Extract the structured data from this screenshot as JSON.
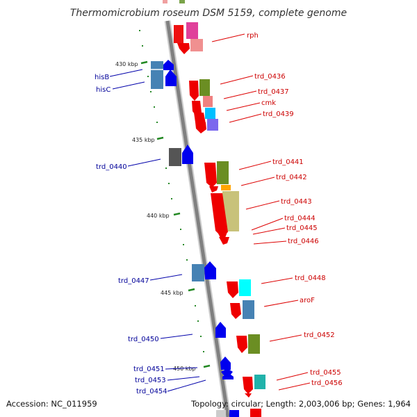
{
  "title": "Thermomicrobium roseum DSM 5159, complete genome",
  "accession": "Accession: NC_011959",
  "summary": "Topology: circular; Length: 2,003,006 bp; Genes: 1,964",
  "scale_ticks": [
    "430 kbp",
    "435 kbp",
    "440 kbp",
    "445 kbp",
    "450 kbp"
  ],
  "right_labels": [
    "rph",
    "trd_0436",
    "trd_0437",
    "cmk",
    "trd_0439",
    "trd_0441",
    "trd_0442",
    "trd_0443",
    "trd_0444",
    "trd_0445",
    "trd_0446",
    "trd_0448",
    "aroF",
    "trd_0452",
    "trd_0455",
    "trd_0456"
  ],
  "left_labels": [
    "hisB",
    "hisC",
    "trd_0440",
    "trd_0447",
    "trd_0450",
    "trd_0451",
    "trd_0453",
    "trd_0454"
  ],
  "colors": {
    "backbone": "#888888",
    "forward_strand_gene": "#0000ee",
    "reverse_strand_gene": "#ee0000",
    "right_label": "#cc0000",
    "left_label": "#000099",
    "tick": "#228822"
  }
}
